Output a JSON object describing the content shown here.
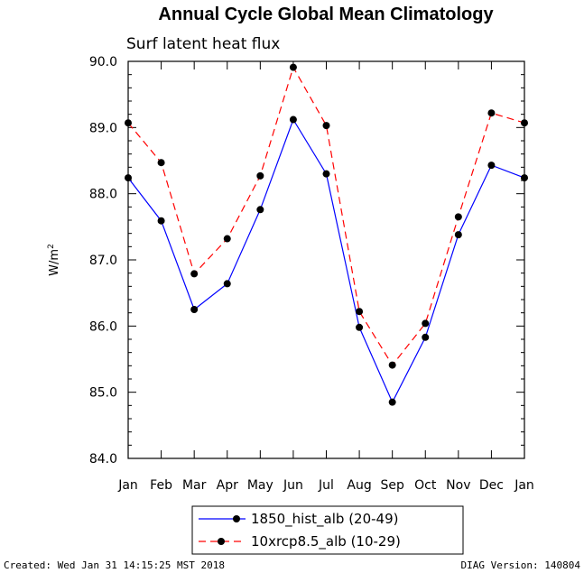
{
  "chart_data": {
    "type": "line",
    "title": "Annual Cycle Global Mean Climatology",
    "subtitle": "Surf latent heat flux",
    "ylabel": "W/m",
    "ylabel_superscript": "2",
    "ylim": [
      84.0,
      90.0
    ],
    "yticks": [
      "84.0",
      "85.0",
      "86.0",
      "87.0",
      "88.0",
      "89.0",
      "90.0"
    ],
    "categories": [
      "Jan",
      "Feb",
      "Mar",
      "Apr",
      "May",
      "Jun",
      "Jul",
      "Aug",
      "Sep",
      "Oct",
      "Nov",
      "Dec",
      "Jan"
    ],
    "series": [
      {
        "name": "1850_hist_alb (20-49)",
        "color": "#0000ff",
        "dash": "solid",
        "values": [
          88.24,
          87.59,
          86.25,
          86.64,
          87.76,
          89.12,
          88.3,
          85.98,
          84.85,
          85.83,
          87.38,
          88.43,
          88.24
        ]
      },
      {
        "name": "10xrcp8.5_alb (10-29)",
        "color": "#ff0000",
        "dash": "dashed",
        "values": [
          89.07,
          88.47,
          86.79,
          87.32,
          88.27,
          89.91,
          89.03,
          86.22,
          85.41,
          86.04,
          87.65,
          89.22,
          89.07
        ]
      }
    ],
    "grid": false,
    "legend_position": "bottom-center"
  },
  "footer": {
    "created": "Created: Wed Jan 31 14:15:25 MST 2018",
    "version": "DIAG Version: 140804"
  }
}
